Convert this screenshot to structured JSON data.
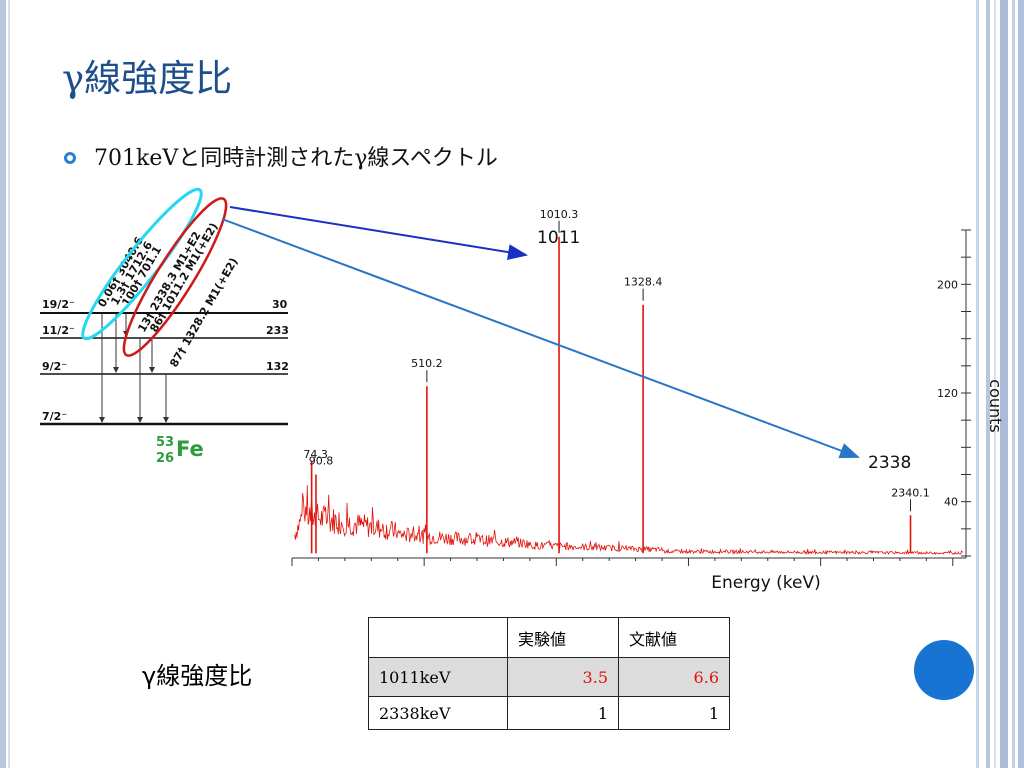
{
  "slide": {
    "title": "γ線強度比",
    "bullet": "701keVと同時計測されたγ線スペクトル"
  },
  "level_scheme": {
    "nucleus_mass": "53",
    "nucleus_z": "26",
    "nucleus_symbol": "Fe",
    "levels": [
      {
        "spin": "19/2⁻",
        "energy": "30"
      },
      {
        "spin": "11/2⁻",
        "energy": "233"
      },
      {
        "spin": "9/2⁻",
        "energy": "132"
      },
      {
        "spin": "7/2⁻",
        "energy": ""
      }
    ],
    "transitions": [
      "0.06† 3040.6",
      "1.3† 1712.6",
      "100† 701.1",
      "13† 2338.3 M1+E2",
      "86† 1011.2 M1(+E2)",
      "87† 1328.2 M1(+E2)"
    ]
  },
  "annotations": {
    "arrow_1011": "1011",
    "arrow_2338": "2338"
  },
  "chart_data": {
    "type": "line",
    "xlabel": "Energy (keV)",
    "ylabel": "counts",
    "yticks": [
      "40",
      "120",
      "200"
    ],
    "ylim": [
      0,
      240
    ],
    "xlim": [
      0,
      2550
    ],
    "peaks": [
      {
        "label": "74.3",
        "x": 74.3,
        "y": 70
      },
      {
        "label": "90.8",
        "x": 90.8,
        "y": 60
      },
      {
        "label": "510.2",
        "x": 510.2,
        "y": 125
      },
      {
        "label": "1010.3",
        "x": 1010.3,
        "y": 235
      },
      {
        "label": "1328.4",
        "x": 1328.4,
        "y": 185
      },
      {
        "label": "2340.1",
        "x": 2340.1,
        "y": 30
      }
    ]
  },
  "table": {
    "headers": [
      "",
      "実験値",
      "文献値"
    ],
    "rows": [
      {
        "label": "1011keV",
        "exp": "3.5",
        "lit": "6.6"
      },
      {
        "label": "2338keV",
        "exp": "1",
        "lit": "1"
      }
    ]
  },
  "ratio_label": "γ線強度比",
  "colors": {
    "title": "#1f4e8c",
    "spectrum": "#e0140c",
    "arrow_dark": "#1a2fc4",
    "arrow_light": "#2876c8",
    "ellipse_cyan": "#25d8f0",
    "ellipse_red": "#d01818",
    "highlight_value": "#e0140c"
  }
}
